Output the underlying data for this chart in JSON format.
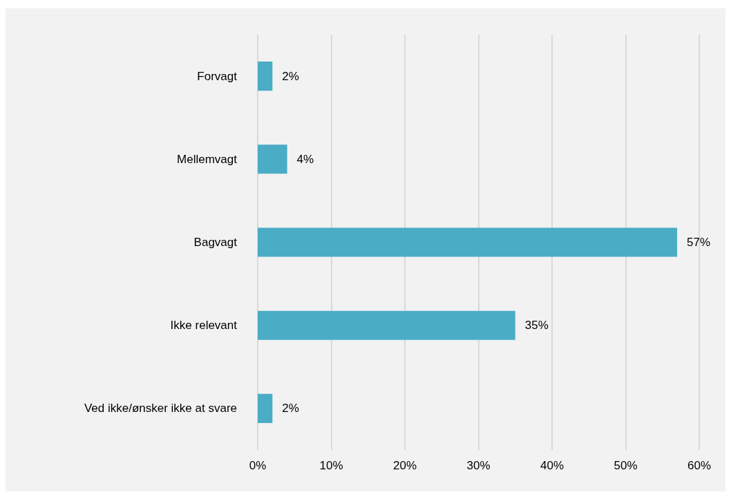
{
  "chart_data": {
    "type": "bar",
    "orientation": "horizontal",
    "categories": [
      "Forvagt",
      "Mellemvagt",
      "Bagvagt",
      "Ikke relevant",
      "Ved ikke/ønsker ikke at svare"
    ],
    "values": [
      2,
      4,
      57,
      35,
      2
    ],
    "value_labels": [
      "2%",
      "4%",
      "57%",
      "35%",
      "2%"
    ],
    "color": "#4bacc6",
    "xlim": [
      0,
      60
    ],
    "xticks": [
      {
        "value": 0,
        "label": "0%"
      },
      {
        "value": 10,
        "label": "10%"
      },
      {
        "value": 20,
        "label": "20%"
      },
      {
        "value": 30,
        "label": "30%"
      },
      {
        "value": 40,
        "label": "40%"
      },
      {
        "value": 50,
        "label": "50%"
      },
      {
        "value": 60,
        "label": "60%"
      }
    ],
    "grid": "x"
  }
}
